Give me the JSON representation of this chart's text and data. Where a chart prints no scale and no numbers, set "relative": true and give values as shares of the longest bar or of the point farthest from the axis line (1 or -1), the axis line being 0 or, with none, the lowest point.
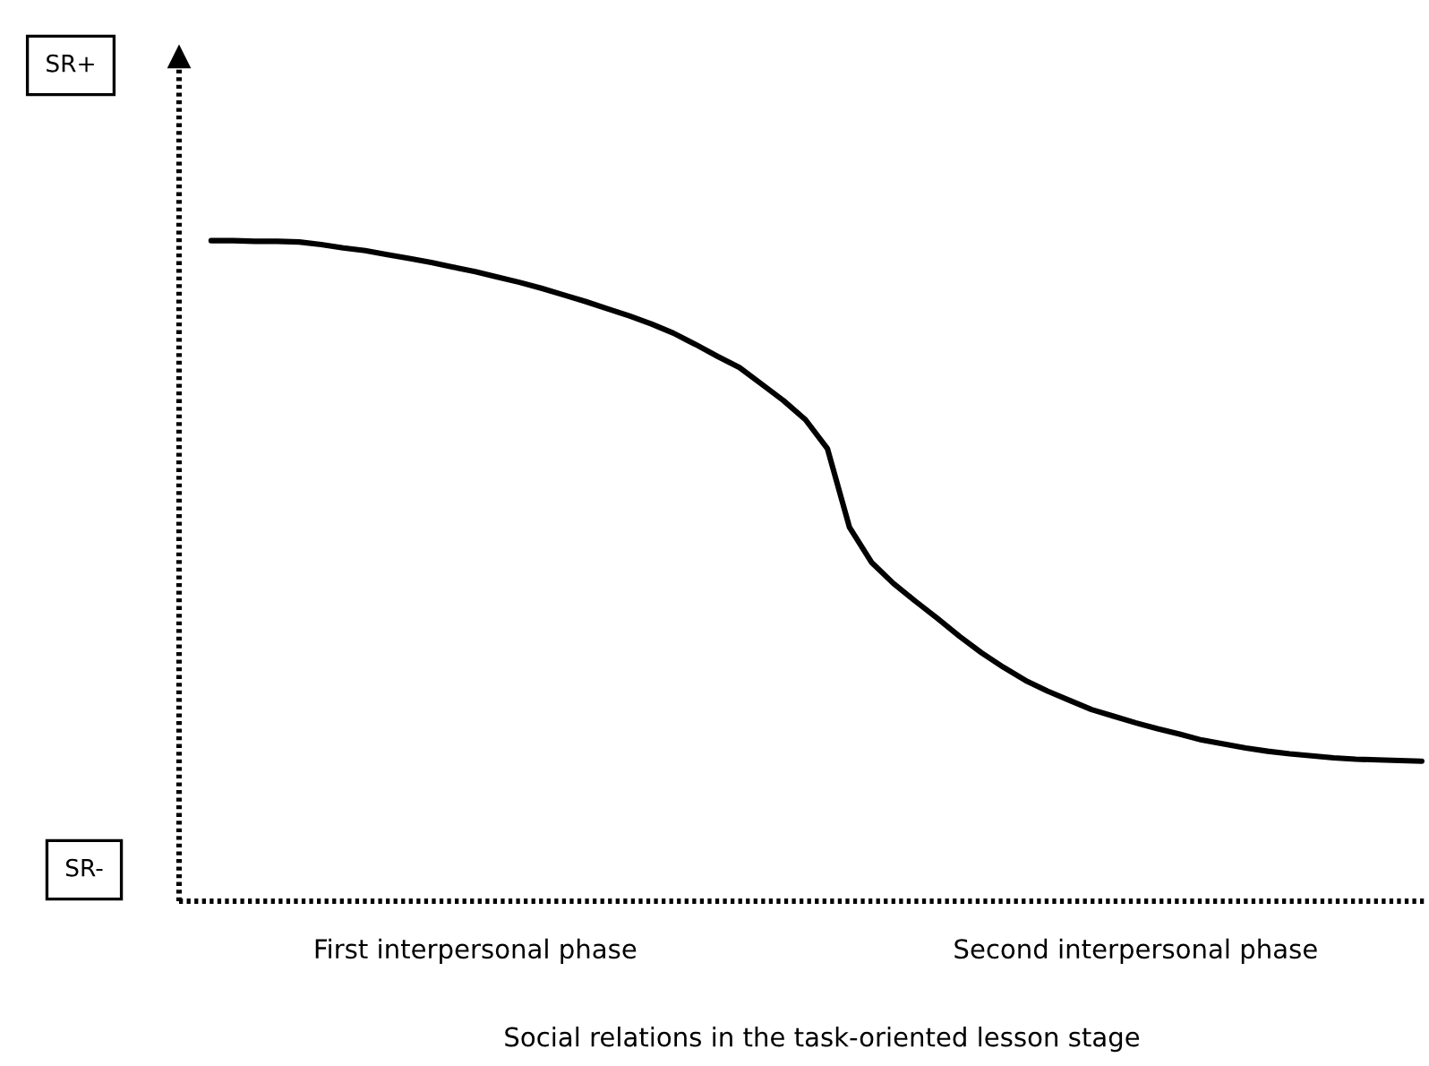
{
  "chart_data": {
    "type": "line",
    "relative": true,
    "line_style": "solid",
    "categories": [
      null,
      null,
      null,
      null,
      null,
      null,
      null,
      null,
      null,
      null,
      null,
      null,
      "First interpersonal phase",
      null,
      null,
      null,
      null,
      null,
      null,
      null,
      null,
      null,
      null,
      null,
      null,
      null,
      null,
      null,
      null,
      null,
      null,
      null,
      null,
      null,
      null,
      null,
      null,
      null,
      null,
      null,
      null,
      null,
      "Second interpersonal phase",
      null,
      null,
      null,
      null,
      null,
      null,
      null,
      null,
      null,
      null,
      null,
      null,
      null
    ],
    "series": [
      {
        "color": "#000000",
        "values": [
          1.0,
          1.0,
          0.999,
          0.999,
          0.998,
          0.994,
          0.989,
          0.985,
          0.979,
          0.973,
          0.967,
          0.96,
          0.953,
          0.945,
          0.937,
          0.928,
          0.918,
          0.908,
          0.897,
          0.886,
          0.874,
          0.86,
          0.843,
          0.825,
          0.808,
          0.783,
          0.758,
          0.729,
          0.685,
          0.566,
          0.513,
          0.481,
          0.454,
          0.428,
          0.401,
          0.376,
          0.354,
          0.334,
          0.318,
          0.304,
          0.29,
          0.28,
          0.27,
          0.261,
          0.253,
          0.244,
          0.238,
          0.232,
          0.227,
          0.223,
          0.22,
          0.217,
          0.215,
          0.214,
          0.213,
          0.212
        ]
      }
    ],
    "xlabel": "Social relations in the task-oriented lesson stage",
    "annotations": [
      "SR+",
      "SR-"
    ]
  }
}
